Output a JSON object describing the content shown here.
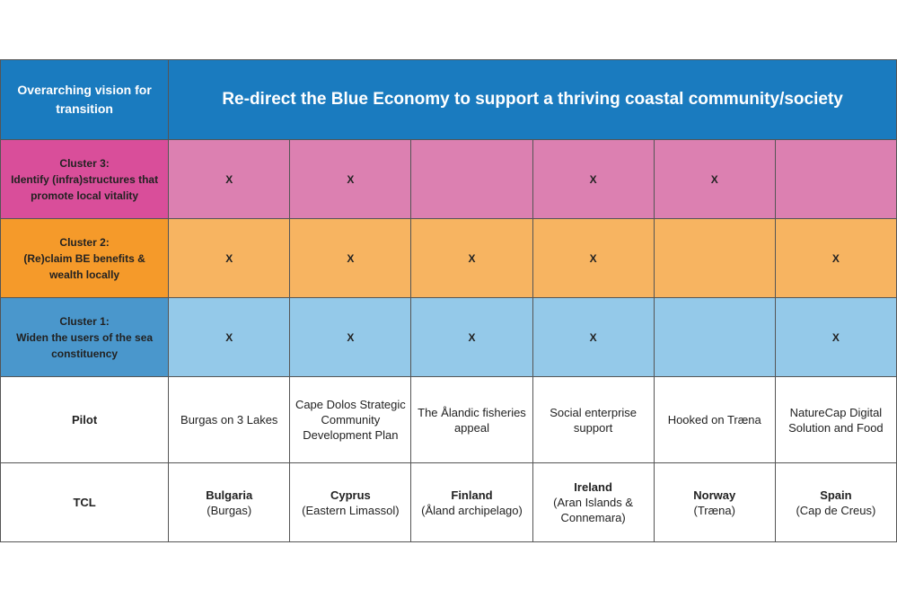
{
  "header": {
    "vision_label": "Overarching vision for transition",
    "vision": "Re-direct the Blue Economy to support a thriving coastal community/society"
  },
  "clusters": [
    {
      "title": "Cluster 3:",
      "desc1": "Identify (infra)structures that",
      "desc2": "promote local vitality",
      "marks": [
        "X",
        "X",
        "",
        "X",
        "X",
        ""
      ]
    },
    {
      "title": "Cluster 2:",
      "desc1": "(Re)claim BE benefits &",
      "desc2": "wealth locally",
      "marks": [
        "X",
        "X",
        "X",
        "X",
        "",
        "X"
      ]
    },
    {
      "title": "Cluster 1:",
      "desc1": "Widen the users of the sea",
      "desc2": "constituency",
      "marks": [
        "X",
        "X",
        "X",
        "X",
        "",
        "X"
      ]
    }
  ],
  "pilot": {
    "label": "Pilot",
    "values": [
      "Burgas on 3 Lakes",
      "Cape Dolos Strategic Community Development Plan",
      "The Ålandic fisheries appeal",
      "Social enterprise support",
      "Hooked on Træna",
      "NatureCap Digital Solution and Food"
    ]
  },
  "tcl": {
    "label": "TCL",
    "countries": [
      {
        "country": "Bulgaria",
        "region": "(Burgas)"
      },
      {
        "country": "Cyprus",
        "region": "(Eastern Limassol)"
      },
      {
        "country": "Finland",
        "region": "(Åland archipelago)"
      },
      {
        "country": "Ireland",
        "region": "(Aran Islands & Connemara)"
      },
      {
        "country": "Norway",
        "region": "(Træna)"
      },
      {
        "country": "Spain",
        "region": "(Cap de Creus)"
      }
    ]
  }
}
